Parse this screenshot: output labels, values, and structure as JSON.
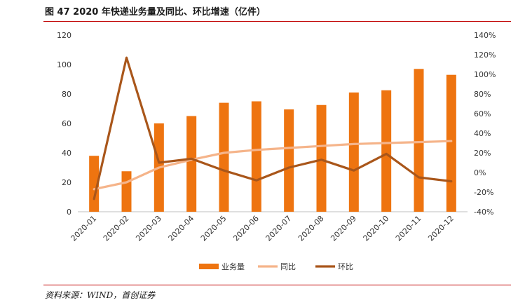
{
  "header": {
    "title": "图 47 2020 年快递业务量及同比、环比增速（亿件）"
  },
  "footer": {
    "source": "资料来源：WIND，首创证券"
  },
  "colors": {
    "bars": "#EE7410",
    "yoy": "#F5B48A",
    "mom": "#A9561A",
    "rule": "#c00000"
  },
  "chart_data": {
    "type": "bar",
    "categories": [
      "2020-01",
      "2020-02",
      "2020-03",
      "2020-04",
      "2020-05",
      "2020-06",
      "2020-07",
      "2020-08",
      "2020-09",
      "2020-10",
      "2020-11",
      "2020-12"
    ],
    "series": [
      {
        "name": "业务量",
        "type": "bar",
        "axis": "left",
        "values": [
          38,
          27.5,
          60,
          65,
          74,
          75,
          69.5,
          72.5,
          81,
          82.5,
          97,
          93
        ]
      },
      {
        "name": "同比",
        "type": "line",
        "axis": "right",
        "values": [
          -17,
          -10,
          5,
          13,
          20,
          23,
          25,
          27,
          29,
          30,
          31,
          32
        ]
      },
      {
        "name": "环比",
        "type": "line",
        "axis": "right",
        "values": [
          -27,
          117,
          10,
          14,
          2,
          -8,
          5,
          13,
          2,
          19,
          -5,
          -9
        ]
      }
    ],
    "left_axis": {
      "ylim": [
        0,
        120
      ],
      "ticks": [
        0,
        20,
        40,
        60,
        80,
        100,
        120
      ]
    },
    "right_axis": {
      "ylim": [
        -40,
        140
      ],
      "ticks": [
        "-40%",
        "-20%",
        "0%",
        "20%",
        "40%",
        "60%",
        "80%",
        "100%",
        "120%",
        "140%"
      ]
    },
    "legend": {
      "position": "bottom",
      "items": [
        "业务量",
        "同比",
        "环比"
      ]
    },
    "title": "图 47 2020 年快递业务量及同比、环比增速（亿件）"
  }
}
